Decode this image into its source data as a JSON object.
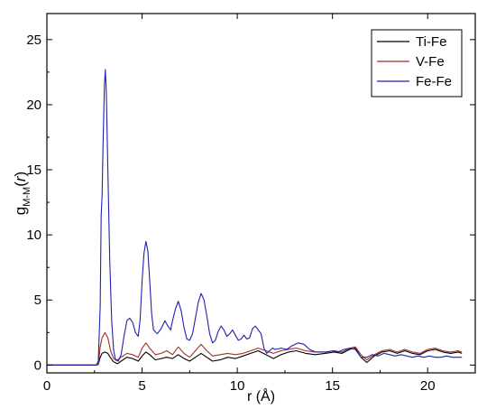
{
  "chart_data": {
    "type": "line",
    "xlabel": "r (Å)",
    "ylabel": {
      "base": "g",
      "subscript": "M-M",
      "open": "(",
      "var": "r",
      "close": ")"
    },
    "xlim": [
      0,
      22.5
    ],
    "ylim": [
      -0.6,
      27
    ],
    "x_ticks": [
      0,
      5,
      10,
      15,
      20
    ],
    "y_ticks": [
      0,
      5,
      10,
      15,
      20,
      25
    ],
    "grid": false,
    "legend_position": "top-right",
    "series": [
      {
        "name": "Ti-Fe",
        "color": "#000000",
        "points": [
          [
            0,
            0
          ],
          [
            2.6,
            0
          ],
          [
            2.7,
            0.05
          ],
          [
            2.8,
            0.6
          ],
          [
            2.9,
            0.9
          ],
          [
            3.05,
            1.0
          ],
          [
            3.2,
            0.9
          ],
          [
            3.35,
            0.55
          ],
          [
            3.5,
            0.25
          ],
          [
            3.7,
            0.1
          ],
          [
            3.9,
            0.3
          ],
          [
            4.2,
            0.6
          ],
          [
            4.5,
            0.5
          ],
          [
            4.8,
            0.3
          ],
          [
            5.0,
            0.7
          ],
          [
            5.2,
            1.0
          ],
          [
            5.4,
            0.8
          ],
          [
            5.7,
            0.4
          ],
          [
            6.0,
            0.5
          ],
          [
            6.3,
            0.6
          ],
          [
            6.6,
            0.5
          ],
          [
            6.9,
            0.8
          ],
          [
            7.2,
            0.5
          ],
          [
            7.5,
            0.3
          ],
          [
            7.8,
            0.6
          ],
          [
            8.1,
            0.9
          ],
          [
            8.4,
            0.6
          ],
          [
            8.7,
            0.3
          ],
          [
            9.1,
            0.4
          ],
          [
            9.5,
            0.6
          ],
          [
            9.9,
            0.5
          ],
          [
            10.3,
            0.7
          ],
          [
            10.7,
            0.9
          ],
          [
            11.1,
            1.1
          ],
          [
            11.5,
            0.8
          ],
          [
            11.9,
            0.5
          ],
          [
            12.3,
            0.8
          ],
          [
            12.7,
            1.0
          ],
          [
            13.1,
            1.1
          ],
          [
            13.6,
            0.9
          ],
          [
            14.1,
            0.8
          ],
          [
            14.6,
            0.9
          ],
          [
            15.1,
            1.0
          ],
          [
            15.5,
            0.9
          ],
          [
            15.9,
            1.2
          ],
          [
            16.2,
            1.3
          ],
          [
            16.5,
            0.6
          ],
          [
            16.8,
            0.2
          ],
          [
            17.2,
            0.7
          ],
          [
            17.6,
            1.0
          ],
          [
            18.0,
            1.1
          ],
          [
            18.4,
            0.9
          ],
          [
            18.8,
            1.1
          ],
          [
            19.2,
            0.9
          ],
          [
            19.6,
            0.8
          ],
          [
            20.0,
            1.1
          ],
          [
            20.4,
            1.2
          ],
          [
            20.8,
            1.0
          ],
          [
            21.2,
            0.9
          ],
          [
            21.6,
            1.0
          ],
          [
            21.8,
            0.9
          ]
        ]
      },
      {
        "name": "V-Fe",
        "color": "#a0302a",
        "points": [
          [
            0,
            0
          ],
          [
            2.6,
            0
          ],
          [
            2.7,
            0.1
          ],
          [
            2.8,
            1.4
          ],
          [
            2.9,
            2.1
          ],
          [
            3.05,
            2.5
          ],
          [
            3.2,
            2.1
          ],
          [
            3.35,
            1.1
          ],
          [
            3.5,
            0.5
          ],
          [
            3.7,
            0.4
          ],
          [
            3.9,
            0.6
          ],
          [
            4.2,
            0.9
          ],
          [
            4.5,
            0.8
          ],
          [
            4.8,
            0.6
          ],
          [
            5.0,
            1.3
          ],
          [
            5.2,
            1.7
          ],
          [
            5.4,
            1.3
          ],
          [
            5.7,
            0.8
          ],
          [
            6.0,
            0.9
          ],
          [
            6.3,
            1.1
          ],
          [
            6.6,
            0.8
          ],
          [
            6.9,
            1.4
          ],
          [
            7.2,
            0.9
          ],
          [
            7.5,
            0.6
          ],
          [
            7.8,
            1.1
          ],
          [
            8.1,
            1.6
          ],
          [
            8.4,
            1.1
          ],
          [
            8.7,
            0.7
          ],
          [
            9.1,
            0.8
          ],
          [
            9.5,
            0.9
          ],
          [
            9.9,
            0.8
          ],
          [
            10.3,
            0.9
          ],
          [
            10.7,
            1.1
          ],
          [
            11.1,
            1.3
          ],
          [
            11.5,
            1.1
          ],
          [
            11.9,
            0.9
          ],
          [
            12.3,
            1.1
          ],
          [
            12.7,
            1.2
          ],
          [
            13.1,
            1.3
          ],
          [
            13.6,
            1.1
          ],
          [
            14.1,
            1.0
          ],
          [
            14.6,
            1.0
          ],
          [
            15.1,
            1.1
          ],
          [
            15.5,
            1.0
          ],
          [
            15.9,
            1.3
          ],
          [
            16.2,
            1.4
          ],
          [
            16.5,
            0.8
          ],
          [
            16.8,
            0.4
          ],
          [
            17.2,
            0.8
          ],
          [
            17.6,
            1.1
          ],
          [
            18.0,
            1.2
          ],
          [
            18.4,
            1.0
          ],
          [
            18.8,
            1.2
          ],
          [
            19.2,
            1.0
          ],
          [
            19.6,
            0.9
          ],
          [
            20.0,
            1.2
          ],
          [
            20.4,
            1.3
          ],
          [
            20.8,
            1.1
          ],
          [
            21.2,
            1.0
          ],
          [
            21.6,
            1.1
          ],
          [
            21.8,
            1.0
          ]
        ]
      },
      {
        "name": "Fe-Fe",
        "color": "#1f1fb4",
        "points": [
          [
            0,
            0
          ],
          [
            2.6,
            0
          ],
          [
            2.7,
            0.3
          ],
          [
            2.8,
            4.5
          ],
          [
            2.85,
            11.5
          ],
          [
            2.9,
            13.0
          ],
          [
            2.95,
            17.0
          ],
          [
            3.02,
            21.5
          ],
          [
            3.07,
            22.7
          ],
          [
            3.12,
            21.0
          ],
          [
            3.2,
            15.0
          ],
          [
            3.3,
            8.0
          ],
          [
            3.4,
            3.5
          ],
          [
            3.5,
            1.2
          ],
          [
            3.6,
            0.4
          ],
          [
            3.75,
            0.3
          ],
          [
            3.9,
            0.8
          ],
          [
            4.05,
            2.2
          ],
          [
            4.2,
            3.4
          ],
          [
            4.35,
            3.6
          ],
          [
            4.5,
            3.3
          ],
          [
            4.65,
            2.5
          ],
          [
            4.8,
            2.2
          ],
          [
            4.9,
            3.5
          ],
          [
            5.0,
            6.5
          ],
          [
            5.1,
            8.6
          ],
          [
            5.2,
            9.5
          ],
          [
            5.3,
            8.8
          ],
          [
            5.4,
            6.5
          ],
          [
            5.5,
            4.0
          ],
          [
            5.6,
            2.7
          ],
          [
            5.8,
            2.4
          ],
          [
            6.0,
            2.8
          ],
          [
            6.2,
            3.4
          ],
          [
            6.35,
            3.0
          ],
          [
            6.5,
            2.7
          ],
          [
            6.6,
            3.4
          ],
          [
            6.75,
            4.3
          ],
          [
            6.9,
            4.9
          ],
          [
            7.05,
            4.2
          ],
          [
            7.2,
            2.9
          ],
          [
            7.35,
            2.0
          ],
          [
            7.5,
            1.9
          ],
          [
            7.65,
            2.4
          ],
          [
            7.8,
            3.6
          ],
          [
            7.95,
            4.8
          ],
          [
            8.1,
            5.5
          ],
          [
            8.25,
            5.0
          ],
          [
            8.4,
            3.8
          ],
          [
            8.55,
            2.4
          ],
          [
            8.7,
            1.7
          ],
          [
            8.85,
            1.9
          ],
          [
            9.0,
            2.6
          ],
          [
            9.15,
            3.0
          ],
          [
            9.3,
            2.7
          ],
          [
            9.45,
            2.2
          ],
          [
            9.6,
            2.4
          ],
          [
            9.75,
            2.7
          ],
          [
            9.9,
            2.3
          ],
          [
            10.05,
            1.9
          ],
          [
            10.2,
            2.0
          ],
          [
            10.35,
            2.3
          ],
          [
            10.5,
            2.0
          ],
          [
            10.65,
            2.1
          ],
          [
            10.8,
            2.8
          ],
          [
            10.95,
            3.0
          ],
          [
            11.1,
            2.7
          ],
          [
            11.25,
            2.4
          ],
          [
            11.4,
            1.3
          ],
          [
            11.55,
            0.9
          ],
          [
            11.7,
            1.1
          ],
          [
            11.85,
            1.3
          ],
          [
            12.0,
            1.2
          ],
          [
            12.3,
            1.3
          ],
          [
            12.6,
            1.2
          ],
          [
            12.9,
            1.5
          ],
          [
            13.2,
            1.7
          ],
          [
            13.5,
            1.6
          ],
          [
            13.8,
            1.2
          ],
          [
            14.1,
            1.0
          ],
          [
            14.4,
            1.0
          ],
          [
            14.7,
            1.0
          ],
          [
            15.0,
            1.1
          ],
          [
            15.3,
            1.0
          ],
          [
            15.6,
            1.2
          ],
          [
            15.9,
            1.3
          ],
          [
            16.2,
            1.2
          ],
          [
            16.5,
            0.6
          ],
          [
            16.8,
            0.6
          ],
          [
            17.1,
            0.8
          ],
          [
            17.4,
            0.7
          ],
          [
            17.7,
            0.9
          ],
          [
            18.0,
            0.8
          ],
          [
            18.3,
            0.7
          ],
          [
            18.6,
            0.8
          ],
          [
            18.9,
            0.7
          ],
          [
            19.2,
            0.6
          ],
          [
            19.5,
            0.7
          ],
          [
            19.8,
            0.6
          ],
          [
            20.1,
            0.7
          ],
          [
            20.4,
            0.6
          ],
          [
            20.7,
            0.6
          ],
          [
            21.0,
            0.7
          ],
          [
            21.3,
            0.6
          ],
          [
            21.6,
            0.6
          ],
          [
            21.8,
            0.6
          ]
        ]
      }
    ]
  }
}
